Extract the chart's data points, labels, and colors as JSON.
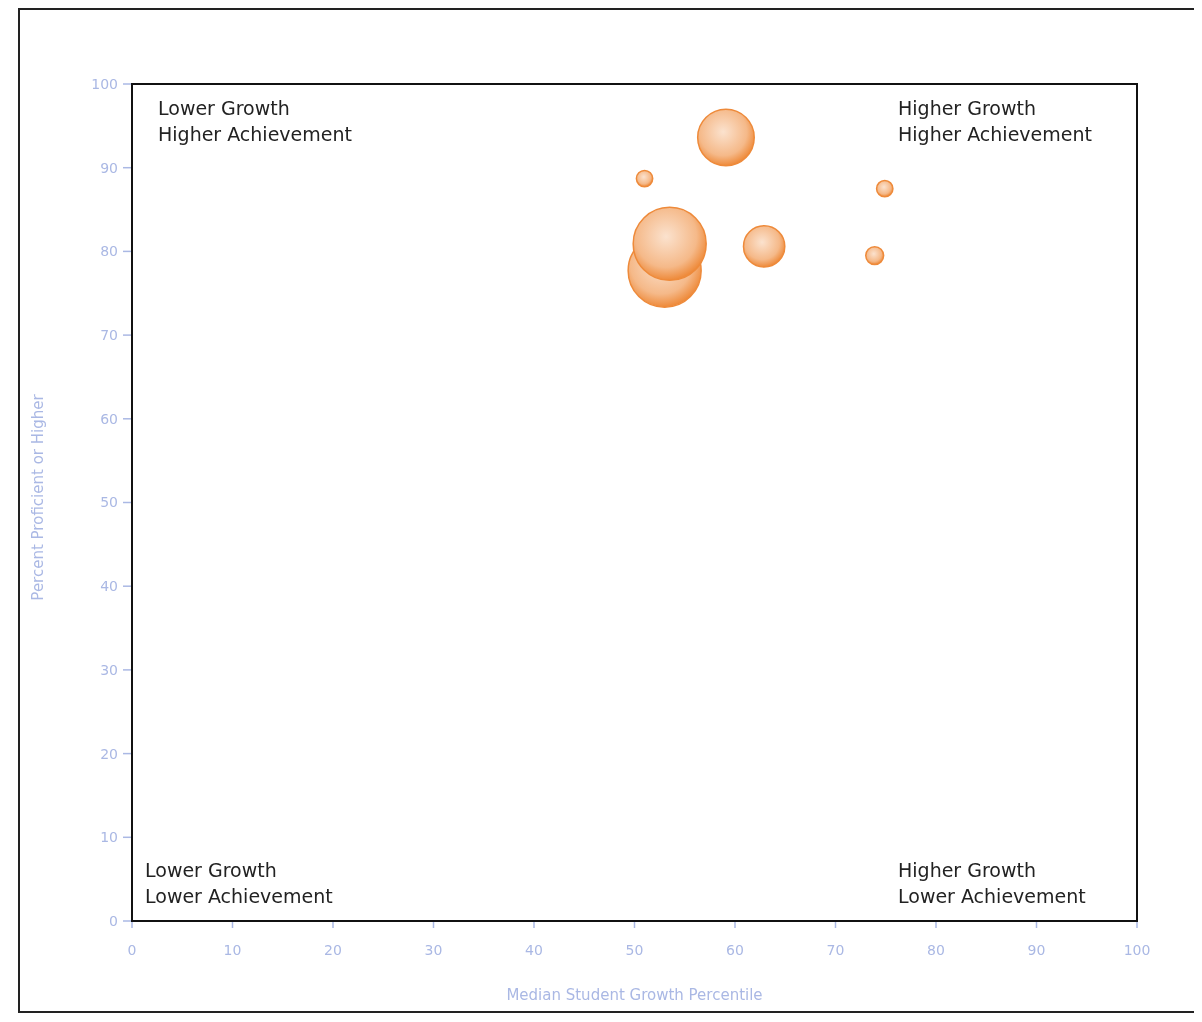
{
  "chart_data": {
    "type": "bubble",
    "xlabel": "Median Student Growth Percentile",
    "ylabel": "Percent Proficient or Higher",
    "x": [
      53.0,
      53.5,
      59.1,
      51.0,
      74.9,
      62.9,
      73.9
    ],
    "values": [
      77.7,
      80.9,
      93.6,
      88.7,
      87.5,
      80.6,
      79.5
    ],
    "sizes": [
      1,
      1,
      0.6,
      0.05,
      0.05,
      0.32,
      0.06
    ],
    "color": "#ee8a3a",
    "xlim": [
      0,
      100
    ],
    "xticks": [
      0,
      10,
      20,
      30,
      40,
      50,
      60,
      70,
      80,
      90,
      100
    ],
    "ylim": [
      0,
      100
    ],
    "yticks": [
      0,
      10,
      20,
      30,
      40,
      50,
      60,
      70,
      80,
      90,
      100
    ],
    "marker": "circle",
    "annotations": [
      "Lower Growth\nHigher Achievement",
      "Higher Growth\nHigher Achievement",
      "Lower Growth\nLower Achievement",
      "Higher Growth\nLower Achievement"
    ]
  }
}
